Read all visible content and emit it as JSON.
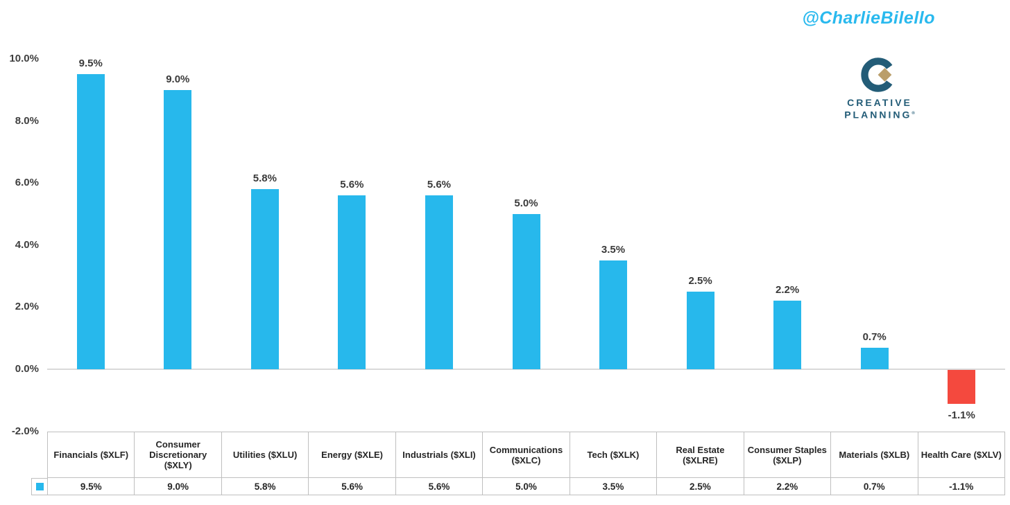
{
  "attribution": {
    "handle": "@CharlieBilello",
    "color": "#29B9EE"
  },
  "logo": {
    "letter": "C",
    "line1": "CREATIVE",
    "line2": "PLANNING",
    "trademark": "®",
    "teal": "#235C77",
    "gold": "#BA9E6A"
  },
  "chart_data": {
    "type": "bar",
    "categories": [
      "Financials ($XLF)",
      "Consumer Discretionary ($XLY)",
      "Utilities ($XLU)",
      "Energy ($XLE)",
      "Industrials ($XLI)",
      "Communications ($XLC)",
      "Tech ($XLK)",
      "Real Estate ($XLRE)",
      "Consumer Staples ($XLP)",
      "Materials ($XLB)",
      "Health Care ($XLV)"
    ],
    "values": [
      9.5,
      9.0,
      5.8,
      5.6,
      5.6,
      5.0,
      3.5,
      2.5,
      2.2,
      0.7,
      -1.1
    ],
    "bar_labels": [
      "9.5%",
      "9.0%",
      "5.8%",
      "5.6%",
      "5.6%",
      "5.0%",
      "3.5%",
      "2.5%",
      "2.2%",
      "0.7%",
      "-1.1%"
    ],
    "title": "",
    "xlabel": "",
    "ylabel": "",
    "ylim": [
      -2,
      10
    ],
    "yticks": [
      {
        "value": 10,
        "label": "10.0%"
      },
      {
        "value": 8,
        "label": "8.0%"
      },
      {
        "value": 6,
        "label": "6.0%"
      },
      {
        "value": 4,
        "label": "4.0%"
      },
      {
        "value": 2,
        "label": "2.0%"
      },
      {
        "value": 0,
        "label": "0.0%"
      },
      {
        "value": -2,
        "label": "-2.0%"
      }
    ],
    "grid": false,
    "legend_position": "data-table-left",
    "data_table": {
      "headers": [
        "Financials ($XLF)",
        "Consumer Discretionary ($XLY)",
        "Utilities ($XLU)",
        "Energy ($XLE)",
        "Industrials ($XLI)",
        "Communications ($XLC)",
        "Tech ($XLK)",
        "Real Estate ($XLRE)",
        "Consumer Staples ($XLP)",
        "Materials ($XLB)",
        "Health Care ($XLV)"
      ],
      "row_values": [
        "9.5%",
        "9.0%",
        "5.8%",
        "5.6%",
        "5.6%",
        "5.0%",
        "3.5%",
        "2.5%",
        "2.2%",
        "0.7%",
        "-1.1%"
      ]
    },
    "colors": {
      "bar_positive": "#27B8EC",
      "bar_negative": "#F4493E",
      "legend_marker": "#27B8EC",
      "zero_line": "#D9D9D9",
      "table_border": "#BFBFBF",
      "label_text": "#3A3A3A"
    }
  }
}
